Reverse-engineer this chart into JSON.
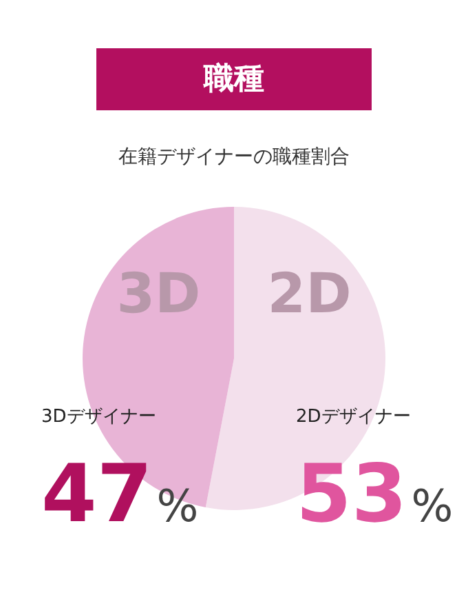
{
  "chart_data": {
    "type": "pie",
    "title": "職種",
    "subtitle": "在籍デザイナーの職種割合",
    "categories": [
      "2Dデザイナー",
      "3Dデザイナー"
    ],
    "values": [
      53,
      47
    ],
    "colors": [
      "#f3e0ec",
      "#e8b4d6"
    ],
    "annotations": [
      "2D",
      "3D"
    ],
    "value_labels": [
      "53%",
      "47%"
    ],
    "legend": false
  }
}
